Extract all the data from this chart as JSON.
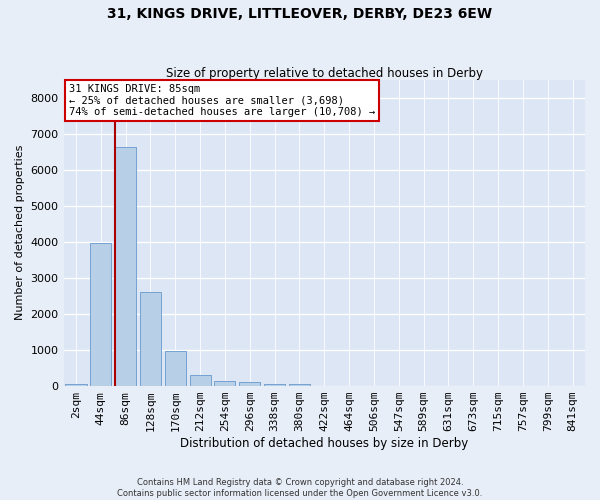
{
  "title": "31, KINGS DRIVE, LITTLEOVER, DERBY, DE23 6EW",
  "subtitle": "Size of property relative to detached houses in Derby",
  "xlabel": "Distribution of detached houses by size in Derby",
  "ylabel": "Number of detached properties",
  "bar_color": "#b8cfe8",
  "bar_edge_color": "#6699cc",
  "fig_bg_color": "#e8eef8",
  "ax_bg_color": "#dce6f5",
  "grid_color": "#ffffff",
  "categories": [
    "2sqm",
    "44sqm",
    "86sqm",
    "128sqm",
    "170sqm",
    "212sqm",
    "254sqm",
    "296sqm",
    "338sqm",
    "380sqm",
    "422sqm",
    "464sqm",
    "506sqm",
    "547sqm",
    "589sqm",
    "631sqm",
    "673sqm",
    "715sqm",
    "757sqm",
    "799sqm",
    "841sqm"
  ],
  "values": [
    60,
    3980,
    6620,
    2620,
    960,
    300,
    130,
    100,
    65,
    60,
    0,
    0,
    0,
    0,
    0,
    0,
    0,
    0,
    0,
    0,
    0
  ],
  "ylim": [
    0,
    8500
  ],
  "yticks": [
    0,
    1000,
    2000,
    3000,
    4000,
    5000,
    6000,
    7000,
    8000
  ],
  "vline_color": "#aa0000",
  "annotation_title": "31 KINGS DRIVE: 85sqm",
  "annotation_line1": "← 25% of detached houses are smaller (3,698)",
  "annotation_line2": "74% of semi-detached houses are larger (10,708) →",
  "annotation_box_color": "#ffffff",
  "annotation_border_color": "#cc0000",
  "footer_line1": "Contains HM Land Registry data © Crown copyright and database right 2024.",
  "footer_line2": "Contains public sector information licensed under the Open Government Licence v3.0."
}
